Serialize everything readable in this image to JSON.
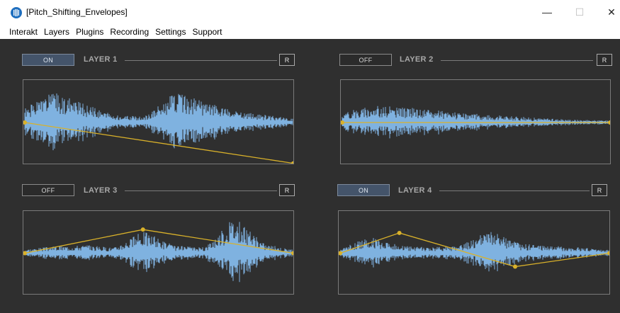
{
  "window": {
    "title": "[Pitch_Shifting_Envelopes]",
    "minimize_glyph": "—",
    "maximize_glyph": "☐",
    "close_glyph": "✕"
  },
  "menu": {
    "items": [
      "Interakt",
      "Layers",
      "Plugins",
      "Recording",
      "Settings",
      "Support"
    ]
  },
  "colors": {
    "background": "#2f2f2f",
    "waveform": "#7fb2e0",
    "envelope": "#d9b12a",
    "on_button": "#44546a"
  },
  "layers": [
    {
      "title": "LAYER 1",
      "state": "ON",
      "reset_label": "R",
      "envelope": [
        [
          0,
          0.5
        ],
        [
          1,
          0.98
        ]
      ],
      "wave_seed": 1,
      "wave_profile": [
        0.35,
        0.8,
        0.5,
        0.2,
        0.15,
        0.8,
        0.55,
        0.3,
        0.2,
        0.1
      ]
    },
    {
      "title": "LAYER 2",
      "state": "OFF",
      "reset_label": "R",
      "envelope": [
        [
          0,
          0.5
        ],
        [
          1,
          0.5
        ]
      ],
      "wave_seed": 2,
      "wave_profile": [
        0.25,
        0.45,
        0.4,
        0.35,
        0.25,
        0.2,
        0.15,
        0.1,
        0.07,
        0.05
      ]
    },
    {
      "title": "LAYER 3",
      "state": "OFF",
      "reset_label": "R",
      "envelope": [
        [
          0,
          0.5
        ],
        [
          0.44,
          0.22
        ],
        [
          1,
          0.5
        ]
      ],
      "wave_seed": 3,
      "wave_profile": [
        0.1,
        0.18,
        0.22,
        0.15,
        0.6,
        0.2,
        0.15,
        0.95,
        0.25,
        0.08
      ]
    },
    {
      "title": "LAYER 4",
      "state": "ON",
      "reset_label": "R",
      "envelope": [
        [
          0,
          0.5
        ],
        [
          0.22,
          0.26
        ],
        [
          0.65,
          0.66
        ],
        [
          1,
          0.5
        ]
      ],
      "wave_seed": 4,
      "wave_profile": [
        0.1,
        0.45,
        0.2,
        0.15,
        0.2,
        0.6,
        0.25,
        0.2,
        0.15,
        0.08
      ]
    }
  ]
}
